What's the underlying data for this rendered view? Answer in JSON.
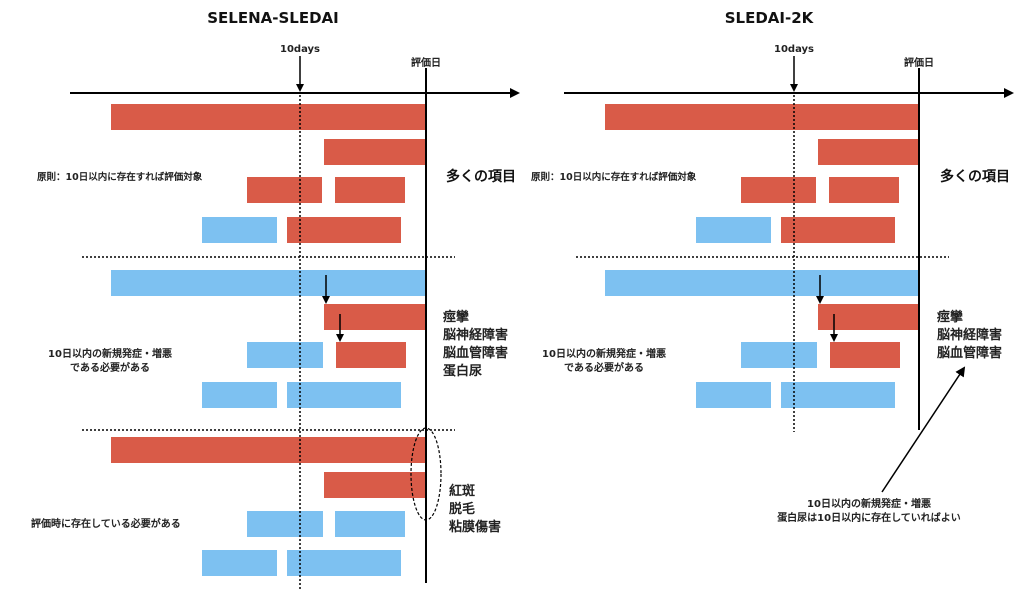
{
  "colors": {
    "red": "#D95B48",
    "blue": "#7DC1F1",
    "line": "#000000"
  },
  "left": {
    "title": "SELENA-SLEDAI",
    "tenDays": "10days",
    "evalDay": "評価日",
    "note1": "原則：10日以内に存在すれば評価対象",
    "group1Label": "多くの項目",
    "note2": [
      "10日以内の新規発症・増悪",
      "である必要がある"
    ],
    "group2Items": [
      "痙攣",
      "脳神経障害",
      "脳血管障害",
      "蛋白尿"
    ],
    "note3": "評価時に存在している必要がある",
    "group3Items": [
      "紅斑",
      "脱毛",
      "粘膜傷害"
    ]
  },
  "right": {
    "title": "SLEDAI-2K",
    "tenDays": "10days",
    "evalDay": "評価日",
    "note1": "原則：10日以内に存在すれば評価対象",
    "group1Label": "多くの項目",
    "note2": [
      "10日以内の新規発症・増悪",
      "である必要がある"
    ],
    "group2Items": [
      "痙攣",
      "脳神経障害",
      "脳血管障害"
    ],
    "annotation": [
      "10日以内の新規発症・増悪",
      "蛋白尿は10日以内に存在していればよい"
    ]
  }
}
